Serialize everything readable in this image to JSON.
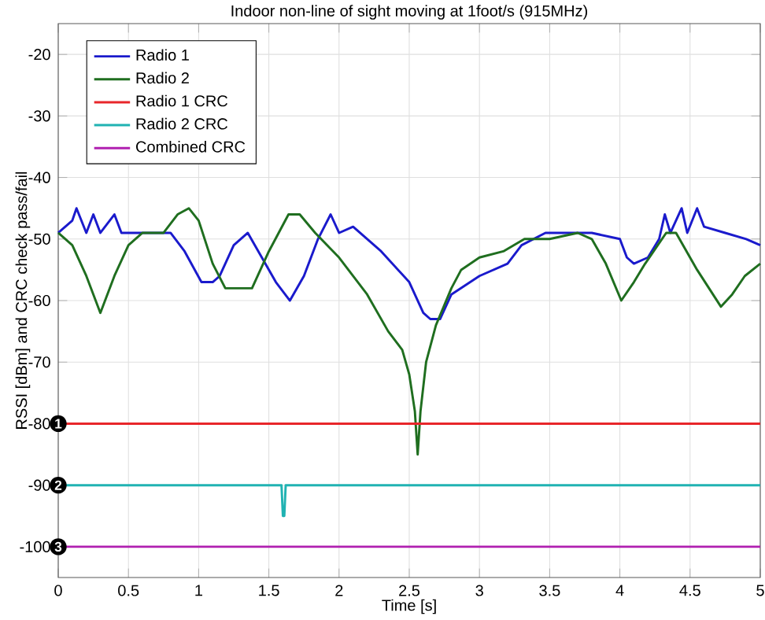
{
  "chart_data": {
    "type": "line",
    "title": "Indoor non-line of sight moving at 1foot/s (915MHz)",
    "xlabel": "Time [s]",
    "ylabel": "RSSI [dBm] and CRC check pass/fail",
    "xlim": [
      0,
      5
    ],
    "ylim": [
      -105,
      -15
    ],
    "xticks": [
      0,
      0.5,
      1,
      1.5,
      2,
      2.5,
      3,
      3.5,
      4,
      4.5,
      5
    ],
    "yticks": [
      -100,
      -90,
      -80,
      -70,
      -60,
      -50,
      -40,
      -30,
      -20
    ],
    "grid": true,
    "legend": "top left",
    "line_style": "solid",
    "series": [
      {
        "name": "Radio 1",
        "color": "#1a1acc",
        "x": [
          0,
          0.1,
          0.13,
          0.2,
          0.25,
          0.3,
          0.4,
          0.45,
          0.7,
          0.8,
          0.9,
          1.02,
          1.1,
          1.15,
          1.25,
          1.35,
          1.45,
          1.55,
          1.65,
          1.75,
          1.85,
          1.94,
          2.0,
          2.1,
          2.3,
          2.5,
          2.6,
          2.65,
          2.72,
          2.8,
          3.0,
          3.2,
          3.3,
          3.47,
          3.6,
          3.8,
          4.0,
          4.05,
          4.1,
          4.2,
          4.28,
          4.32,
          4.36,
          4.44,
          4.48,
          4.55,
          4.6,
          4.75,
          4.9,
          5.0
        ],
        "values": [
          -49,
          -47,
          -45,
          -49,
          -46,
          -49,
          -46,
          -49,
          -49,
          -49,
          -52,
          -57,
          -57,
          -56,
          -51,
          -49,
          -53,
          -57,
          -60,
          -56,
          -50,
          -46,
          -49,
          -48,
          -52,
          -57,
          -62,
          -63,
          -63,
          -59,
          -56,
          -54,
          -51,
          -49,
          -49,
          -49,
          -50,
          -53,
          -54,
          -53,
          -50,
          -46,
          -49,
          -45,
          -49,
          -45,
          -48,
          -49,
          -50,
          -51
        ]
      },
      {
        "name": "Radio 2",
        "color": "#1f6e1f",
        "x": [
          0,
          0.1,
          0.2,
          0.3,
          0.4,
          0.5,
          0.6,
          0.75,
          0.85,
          0.93,
          1.0,
          1.1,
          1.19,
          1.38,
          1.5,
          1.57,
          1.64,
          1.72,
          1.83,
          2.0,
          2.2,
          2.35,
          2.45,
          2.5,
          2.54,
          2.56,
          2.58,
          2.62,
          2.69,
          2.8,
          2.87,
          3.0,
          3.17,
          3.32,
          3.5,
          3.7,
          3.8,
          3.9,
          4.01,
          4.1,
          4.18,
          4.33,
          4.4,
          4.55,
          4.72,
          4.8,
          4.89,
          5.0
        ],
        "values": [
          -49,
          -51,
          -56,
          -62,
          -56,
          -51,
          -49,
          -49,
          -46,
          -45,
          -47,
          -54,
          -58,
          -58,
          -52,
          -49,
          -46,
          -46,
          -49,
          -53,
          -59,
          -65,
          -68,
          -72,
          -78,
          -85,
          -78,
          -70,
          -64,
          -58,
          -55,
          -53,
          -52,
          -50,
          -50,
          -49,
          -50,
          -54,
          -60,
          -57,
          -54,
          -49,
          -49,
          -55,
          -61,
          -59,
          -56,
          -54
        ]
      },
      {
        "name": "Radio 1 CRC",
        "color": "#e8262a",
        "x": [
          0,
          5
        ],
        "values": [
          -80,
          -80
        ]
      },
      {
        "name": "Radio 2 CRC",
        "color": "#20b2b2",
        "x": [
          0,
          1.59,
          1.6,
          1.61,
          1.62,
          5
        ],
        "values": [
          -90,
          -90,
          -95,
          -95,
          -90,
          -90
        ]
      },
      {
        "name": "Combined CRC",
        "color": "#b020b0",
        "x": [
          0,
          5
        ],
        "values": [
          -100,
          -100
        ]
      }
    ],
    "annotations": [
      {
        "text": "1",
        "y": -80
      },
      {
        "text": "2",
        "y": -90
      },
      {
        "text": "3",
        "y": -100
      }
    ]
  }
}
